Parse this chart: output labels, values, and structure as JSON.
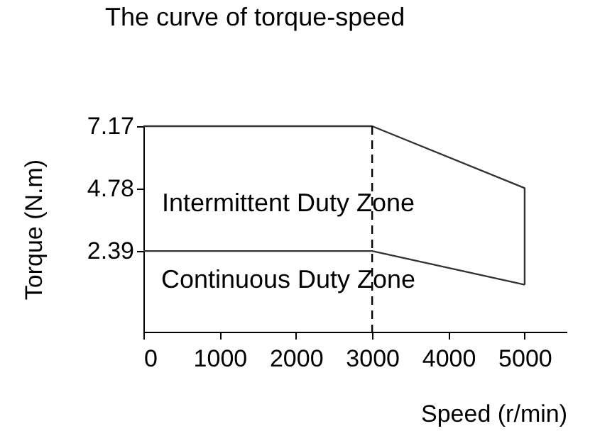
{
  "chart_data": {
    "type": "line",
    "title": "The curve of torque-speed",
    "xlabel": "Speed (r/min)",
    "ylabel": "Torque (N.m)",
    "series": [
      {
        "color": "#333333",
        "x": [
          0,
          3000,
          5000,
          5000
        ],
        "values": [
          7.17,
          7.17,
          4.8,
          1.1
        ]
      },
      {
        "color": "#333333",
        "x": [
          0,
          3000,
          5000
        ],
        "values": [
          2.39,
          2.39,
          1.1
        ]
      }
    ],
    "xlim": [
      0,
      5550
    ],
    "xticks": [
      0,
      1000,
      2000,
      3000,
      4000,
      5000
    ],
    "ylim": [
      -0.7,
      7.17
    ],
    "yticks": [
      2.39,
      4.78,
      7.17
    ],
    "ref_lines": [
      {
        "axis": "x",
        "value": 3000,
        "color": "#000000",
        "line_style": "dashed"
      }
    ],
    "annotations": [
      "Intermittent Duty Zone",
      "Continuous Duty Zone"
    ],
    "marker": "none",
    "line_style": "solid"
  }
}
